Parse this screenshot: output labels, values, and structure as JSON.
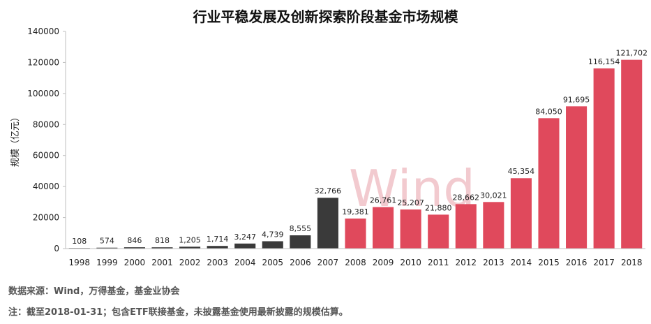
{
  "chart_data": {
    "type": "bar",
    "title": "行业平稳发展及创新探索阶段基金市场规模",
    "xlabel": "",
    "ylabel": "规模（亿元）",
    "ylim": [
      0,
      140000
    ],
    "yticks": [
      "0",
      "20000",
      "40000",
      "60000",
      "80000",
      "100000",
      "120000",
      "140000"
    ],
    "categories": [
      "1998",
      "1999",
      "2000",
      "2001",
      "2002",
      "2003",
      "2004",
      "2005",
      "2006",
      "2007",
      "2008",
      "2009",
      "2010",
      "2011",
      "2012",
      "2013",
      "2014",
      "2015",
      "2016",
      "2017",
      "2018"
    ],
    "values": [
      108,
      574,
      846,
      818,
      1205,
      1714,
      3247,
      4739,
      8555,
      32766,
      19381,
      26761,
      25207,
      21880,
      28662,
      30021,
      45354,
      84050,
      91695,
      116154,
      121702
    ],
    "value_labels": [
      "108",
      "574",
      "846",
      "818",
      "1,205",
      "1,714",
      "3,247",
      "4,739",
      "8,555",
      "32,766",
      "19,381",
      "26,761",
      "25,207",
      "21,880",
      "28,662",
      "30,021",
      "45,354",
      "84,050",
      "91,695",
      "116,154",
      "121,702"
    ],
    "bar_colors": {
      "1998-2007": "#3a3a3a",
      "2008-2018": "#e0495c"
    },
    "grid": false,
    "legend": "none",
    "watermark": "Wind"
  },
  "notes": {
    "source": "数据来源：Wind，万得基金，基金业协会",
    "footnote": "注：截至2018-01-31；包含ETF联接基金，未披露基金使用最新披露的规模估算。"
  }
}
